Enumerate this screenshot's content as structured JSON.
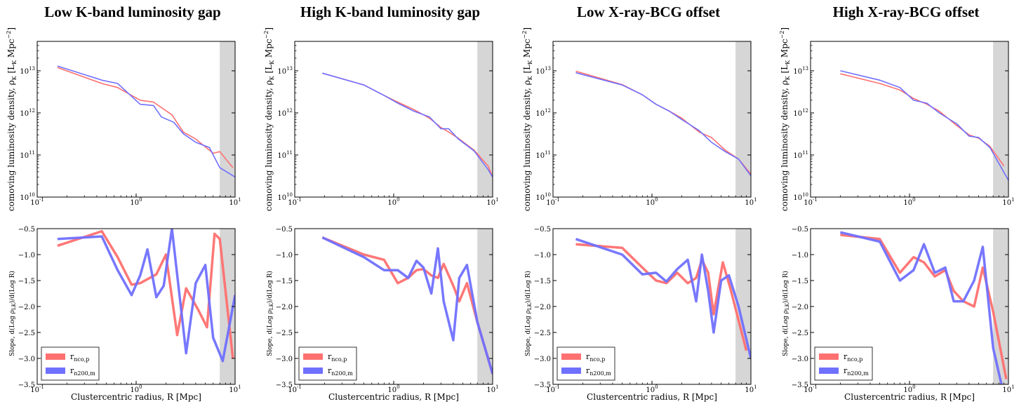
{
  "colors": {
    "red": "#ff7070",
    "blue": "#7070ff",
    "shade": "#d6d6d6"
  },
  "shared": {
    "density_ylabel": "comoving luminosity density, ρ_K [L_K Mpc^-2]",
    "slope_ylabel": "Slope, d(Log ρ_LK)/d(Log R)",
    "xlabel": "Clustercentric radius, R [Mpc]",
    "legend": [
      "r_nco,p",
      "r_n200,m"
    ],
    "x_ticks": [
      "10^-1",
      "10^0",
      "10^1"
    ],
    "density_yticks": [
      "10^10",
      "10^11",
      "10^12",
      "10^13"
    ],
    "slope_yticks": [
      "-0.5",
      "-1.0",
      "-1.5",
      "-2.0",
      "-2.5",
      "-3.0",
      "-3.5"
    ]
  },
  "chart_data": [
    {
      "type": "line",
      "title": "Low K-band luminosity gap",
      "xscale": "log",
      "xlim": [
        0.1,
        10
      ],
      "shaded_x": [
        7.0,
        10
      ],
      "density": {
        "ylim": [
          10000000000.0,
          50000000000000.0
        ],
        "yscale": "log",
        "series": [
          {
            "name": "r_nco,p",
            "color": "red",
            "x": [
              0.16,
              0.45,
              0.65,
              1.1,
              1.5,
              2.3,
              3.0,
              4.0,
              6.0,
              7.0,
              9.5
            ],
            "y": [
              12000000000000.0,
              5000000000000.0,
              4000000000000.0,
              2000000000000.0,
              1800000000000.0,
              900000000000.0,
              350000000000.0,
              240000000000.0,
              110000000000.0,
              120000000000.0,
              50000000000.0
            ]
          },
          {
            "name": "r_n200,m",
            "color": "blue",
            "x": [
              0.16,
              0.45,
              0.65,
              1.1,
              1.5,
              1.8,
              2.4,
              3.0,
              4.0,
              5.5,
              7.0,
              10
            ],
            "y": [
              13000000000000.0,
              6000000000000.0,
              5000000000000.0,
              1600000000000.0,
              1500000000000.0,
              800000000000.0,
              600000000000.0,
              320000000000.0,
              200000000000.0,
              150000000000.0,
              50000000000.0,
              30000000000.0
            ]
          }
        ]
      },
      "slope": {
        "ylim": [
          -3.5,
          -0.5
        ],
        "series": [
          {
            "name": "r_nco,p",
            "color": "red",
            "x": [
              0.16,
              0.45,
              0.65,
              0.9,
              1.1,
              1.6,
              2.0,
              2.6,
              3.2,
              4.2,
              5.2,
              6.2,
              7.0,
              9.5
            ],
            "y": [
              -0.83,
              -0.55,
              -1.05,
              -1.58,
              -1.55,
              -1.38,
              -1.0,
              -2.55,
              -1.65,
              -2.05,
              -2.4,
              -0.6,
              -0.7,
              -3.0
            ]
          },
          {
            "name": "r_n200,m",
            "color": "blue",
            "x": [
              0.16,
              0.45,
              0.65,
              0.9,
              1.1,
              1.3,
              1.6,
              1.9,
              2.3,
              3.2,
              4.0,
              5.0,
              6.0,
              7.5,
              10
            ],
            "y": [
              -0.7,
              -0.65,
              -1.3,
              -1.78,
              -1.4,
              -0.9,
              -1.82,
              -1.6,
              -0.5,
              -2.9,
              -1.55,
              -1.2,
              -2.6,
              -3.05,
              -1.78
            ]
          }
        ]
      }
    },
    {
      "type": "line",
      "title": "High K-band luminosity gap",
      "xscale": "log",
      "xlim": [
        0.1,
        10
      ],
      "shaded_x": [
        7.0,
        10
      ],
      "density": {
        "ylim": [
          10000000000.0,
          50000000000000.0
        ],
        "yscale": "log",
        "series": [
          {
            "name": "r_nco,p",
            "color": "red",
            "x": [
              0.19,
              0.5,
              0.8,
              1.1,
              1.6,
              2.3,
              3.0,
              3.6,
              4.5,
              6.5,
              9.0,
              10
            ],
            "y": [
              8800000000000.0,
              4600000000000.0,
              2600000000000.0,
              1800000000000.0,
              1200000000000.0,
              750000000000.0,
              450000000000.0,
              350000000000.0,
              250000000000.0,
              130000000000.0,
              55000000000.0,
              30000000000.0
            ]
          },
          {
            "name": "r_n200,m",
            "color": "blue",
            "x": [
              0.19,
              0.5,
              0.8,
              1.1,
              1.6,
              2.3,
              3.0,
              3.6,
              4.5,
              6.5,
              9.0,
              10
            ],
            "y": [
              8800000000000.0,
              4600000000000.0,
              2600000000000.0,
              1700000000000.0,
              1100000000000.0,
              800000000000.0,
              420000000000.0,
              420000000000.0,
              240000000000.0,
              125000000000.0,
              45000000000.0,
              30000000000.0
            ]
          }
        ]
      },
      "slope": {
        "ylim": [
          -3.5,
          -0.5
        ],
        "series": [
          {
            "name": "r_nco,p",
            "color": "red",
            "x": [
              0.19,
              0.5,
              0.8,
              1.1,
              1.4,
              1.7,
              2.0,
              2.4,
              2.8,
              3.2,
              4.0,
              4.6,
              5.5,
              7.0,
              10
            ],
            "y": [
              -0.67,
              -1.0,
              -1.1,
              -1.55,
              -1.45,
              -1.3,
              -1.28,
              -1.4,
              -1.45,
              -1.18,
              -1.6,
              -1.9,
              -1.55,
              -2.3,
              -3.3
            ]
          },
          {
            "name": "r_n200,m",
            "color": "blue",
            "x": [
              0.19,
              0.5,
              0.8,
              1.1,
              1.4,
              1.7,
              2.0,
              2.4,
              2.8,
              3.2,
              4.0,
              4.6,
              5.5,
              7.0,
              10
            ],
            "y": [
              -0.67,
              -1.05,
              -1.3,
              -1.3,
              -1.45,
              -1.12,
              -1.25,
              -1.75,
              -0.88,
              -1.9,
              -2.65,
              -1.45,
              -1.2,
              -2.3,
              -3.3
            ]
          }
        ]
      }
    },
    {
      "type": "line",
      "title": "Low X-ray-BCG offset",
      "xscale": "log",
      "xlim": [
        0.1,
        10
      ],
      "shaded_x": [
        7.0,
        10
      ],
      "density": {
        "ylim": [
          10000000000.0,
          50000000000000.0
        ],
        "yscale": "log",
        "series": [
          {
            "name": "r_nco,p",
            "color": "red",
            "x": [
              0.17,
              0.5,
              0.8,
              1.1,
              1.5,
              2.0,
              3.0,
              4.0,
              5.5,
              7.5,
              10
            ],
            "y": [
              9800000000000.0,
              4700000000000.0,
              2700000000000.0,
              1600000000000.0,
              1100000000000.0,
              750000000000.0,
              350000000000.0,
              260000000000.0,
              130000000000.0,
              80000000000.0,
              35000000000.0
            ]
          },
          {
            "name": "r_n200,m",
            "color": "blue",
            "x": [
              0.17,
              0.5,
              0.8,
              1.1,
              1.5,
              2.0,
              3.0,
              4.0,
              5.5,
              7.5,
              10
            ],
            "y": [
              9000000000000.0,
              4600000000000.0,
              2700000000000.0,
              1600000000000.0,
              1100000000000.0,
              700000000000.0,
              380000000000.0,
              200000000000.0,
              120000000000.0,
              80000000000.0,
              32000000000.0
            ]
          }
        ]
      },
      "slope": {
        "ylim": [
          -3.5,
          -0.5
        ],
        "series": [
          {
            "name": "r_nco,p",
            "color": "red",
            "x": [
              0.17,
              0.5,
              0.8,
              1.1,
              1.4,
              1.8,
              2.3,
              2.8,
              3.2,
              3.7,
              4.2,
              5.2,
              6.2,
              9.0
            ],
            "y": [
              -0.8,
              -0.87,
              -1.25,
              -1.5,
              -1.55,
              -1.35,
              -1.55,
              -1.45,
              -1.1,
              -1.35,
              -2.15,
              -1.15,
              -1.65,
              -2.85
            ]
          },
          {
            "name": "r_n200,m",
            "color": "blue",
            "x": [
              0.17,
              0.5,
              0.8,
              1.1,
              1.4,
              1.8,
              2.3,
              2.8,
              3.2,
              3.7,
              4.2,
              5.0,
              6.0,
              7.5,
              10
            ],
            "y": [
              -0.7,
              -1.0,
              -1.38,
              -1.35,
              -1.52,
              -1.28,
              -1.1,
              -1.9,
              -1.0,
              -1.7,
              -2.5,
              -1.5,
              -1.4,
              -2.0,
              -3.0
            ]
          }
        ]
      }
    },
    {
      "type": "line",
      "title": "High X-ray-BCG offset",
      "xscale": "log",
      "xlim": [
        0.1,
        10
      ],
      "shaded_x": [
        7.0,
        10
      ],
      "density": {
        "ylim": [
          10000000000.0,
          50000000000000.0
        ],
        "yscale": "log",
        "series": [
          {
            "name": "r_nco,p",
            "color": "red",
            "x": [
              0.2,
              0.5,
              0.8,
              1.1,
              1.5,
              2.0,
              3.0,
              4.0,
              5.0,
              6.5,
              9.0
            ],
            "y": [
              8500000000000.0,
              5000000000000.0,
              3500000000000.0,
              2200000000000.0,
              1600000000000.0,
              1100000000000.0,
              500000000000.0,
              300000000000.0,
              250000000000.0,
              160000000000.0,
              55000000000.0
            ]
          },
          {
            "name": "r_n200,m",
            "color": "blue",
            "x": [
              0.2,
              0.5,
              0.8,
              1.1,
              1.5,
              2.0,
              3.0,
              4.0,
              5.0,
              6.5,
              10
            ],
            "y": [
              10000000000000.0,
              6000000000000.0,
              4000000000000.0,
              2000000000000.0,
              1700000000000.0,
              1000000000000.0,
              550000000000.0,
              280000000000.0,
              260000000000.0,
              150000000000.0,
              25000000000.0
            ]
          }
        ]
      },
      "slope": {
        "ylim": [
          -3.5,
          -0.5
        ],
        "series": [
          {
            "name": "r_nco,p",
            "color": "red",
            "x": [
              0.2,
              0.5,
              0.8,
              1.1,
              1.4,
              1.8,
              2.3,
              2.8,
              3.5,
              4.5,
              5.5,
              7.0,
              9.5
            ],
            "y": [
              -0.62,
              -0.7,
              -1.35,
              -1.05,
              -1.15,
              -1.42,
              -1.3,
              -1.7,
              -1.9,
              -2.0,
              -1.25,
              -2.1,
              -3.4
            ]
          },
          {
            "name": "r_n200,m",
            "color": "blue",
            "x": [
              0.2,
              0.5,
              0.8,
              1.1,
              1.4,
              1.8,
              2.3,
              2.8,
              3.5,
              4.5,
              5.5,
              7.0,
              8.5
            ],
            "y": [
              -0.57,
              -0.75,
              -1.5,
              -1.3,
              -0.8,
              -1.35,
              -1.25,
              -1.9,
              -1.9,
              -1.5,
              -0.85,
              -2.8,
              -3.5
            ]
          }
        ]
      }
    }
  ]
}
